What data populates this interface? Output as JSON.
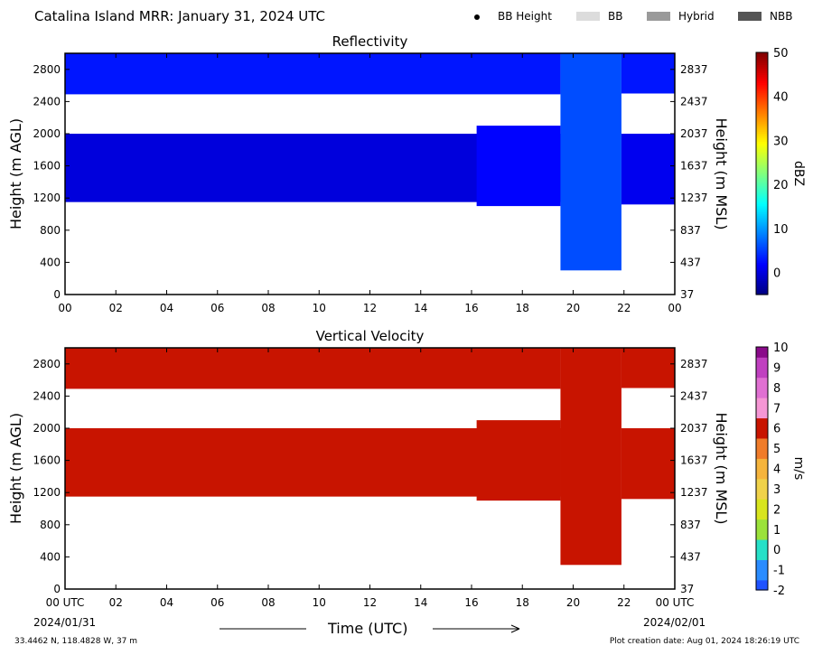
{
  "header": {
    "title": "Catalina Island MRR:  January 31, 2024 UTC",
    "legend": [
      {
        "label": "BB Height",
        "style": "dot",
        "color": "#000000"
      },
      {
        "label": "BB",
        "style": "swatch",
        "color": "#dcdcdc"
      },
      {
        "label": "Hybrid",
        "style": "swatch",
        "color": "#9a9a9a"
      },
      {
        "label": "NBB",
        "style": "swatch",
        "color": "#555555"
      }
    ]
  },
  "footer": {
    "location": "33.4462 N, 118.4828 W, 37 m",
    "created": "Plot creation date: Aug 01, 2024 18:26:19 UTC",
    "start_date": "2024/01/31",
    "end_date": "2024/02/01"
  },
  "chart_data": [
    {
      "type": "heatmap",
      "title": "Reflectivity",
      "xlabel": "",
      "ylabel": "Height (m AGL)",
      "ylabel_right": "Height (m MSL)",
      "x_ticks": [
        "00",
        "02",
        "04",
        "06",
        "08",
        "10",
        "12",
        "14",
        "16",
        "18",
        "20",
        "22",
        "00"
      ],
      "xlim": [
        0,
        24
      ],
      "y_ticks": [
        0,
        400,
        800,
        1200,
        1600,
        2000,
        2400,
        2800
      ],
      "y_ticks_right": [
        37,
        437,
        837,
        1237,
        1637,
        2037,
        2437,
        2837
      ],
      "ylim": [
        0,
        3000
      ],
      "colorbar": {
        "label": "dBZ",
        "min": -5,
        "max": 50,
        "ticks": [
          0,
          10,
          20,
          30,
          40,
          50
        ],
        "colormap": "jet"
      },
      "segments": [
        {
          "t_start": 0,
          "t_end": 19.5,
          "layers": [
            {
              "bottom": 2490,
              "top": 3000,
              "value": 3
            },
            {
              "bottom": 1150,
              "top": 2000,
              "value": 0
            }
          ]
        },
        {
          "t_start": 16.2,
          "t_end": 19.5,
          "layers": [
            {
              "bottom": 1100,
              "top": 2100,
              "value": 2
            }
          ]
        },
        {
          "t_start": 19.5,
          "t_end": 21.9,
          "layers": [
            {
              "bottom": 300,
              "top": 3000,
              "value": 6
            }
          ]
        },
        {
          "t_start": 21.9,
          "t_end": 24,
          "layers": [
            {
              "bottom": 2500,
              "top": 3000,
              "value": 3
            },
            {
              "bottom": 1120,
              "top": 2000,
              "value": 1
            }
          ]
        }
      ]
    },
    {
      "type": "heatmap",
      "title": "Vertical Velocity",
      "xlabel": "Time (UTC)",
      "ylabel": "Height (m AGL)",
      "ylabel_right": "Height (m MSL)",
      "x_ticks": [
        "00 UTC",
        "02",
        "04",
        "06",
        "08",
        "10",
        "12",
        "14",
        "16",
        "18",
        "20",
        "22",
        "00 UTC"
      ],
      "xlim": [
        0,
        24
      ],
      "y_ticks": [
        0,
        400,
        800,
        1200,
        1600,
        2000,
        2400,
        2800
      ],
      "y_ticks_right": [
        37,
        437,
        837,
        1237,
        1637,
        2037,
        2437,
        2837
      ],
      "ylim": [
        0,
        3000
      ],
      "colorbar": {
        "label": "m/s",
        "min": -2,
        "max": 10,
        "ticks": [
          -2,
          -1,
          0,
          1,
          2,
          3,
          4,
          5,
          6,
          7,
          8,
          9,
          10
        ]
      },
      "segments": [
        {
          "t_start": 0,
          "t_end": 19.5,
          "layers": [
            {
              "bottom": 2490,
              "top": 3000,
              "value": 6
            },
            {
              "bottom": 1150,
              "top": 2000,
              "value": 6
            }
          ]
        },
        {
          "t_start": 16.2,
          "t_end": 19.5,
          "layers": [
            {
              "bottom": 1100,
              "top": 2100,
              "value": 6
            }
          ]
        },
        {
          "t_start": 19.5,
          "t_end": 21.9,
          "layers": [
            {
              "bottom": 300,
              "top": 3000,
              "value": 6
            }
          ]
        },
        {
          "t_start": 21.9,
          "t_end": 24,
          "layers": [
            {
              "bottom": 2500,
              "top": 3000,
              "value": 6
            },
            {
              "bottom": 1120,
              "top": 2000,
              "value": 6
            }
          ]
        }
      ]
    }
  ]
}
